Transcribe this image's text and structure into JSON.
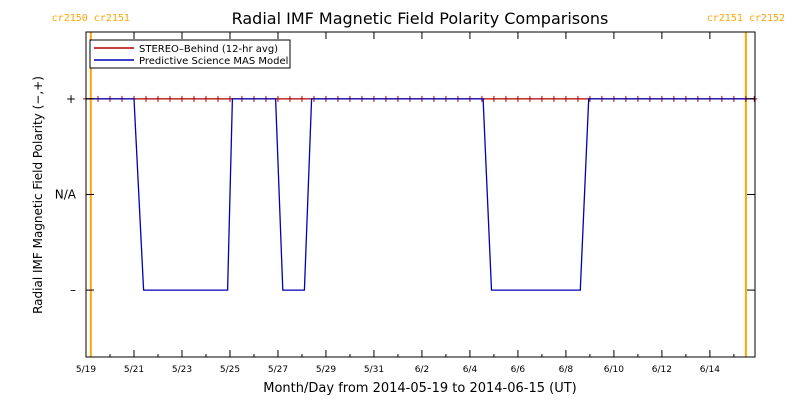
{
  "chart_data": {
    "type": "line",
    "title": "Radial IMF Magnetic Field Polarity Comparisons",
    "xlabel": "Month/Day from 2014-05-19 to 2014-06-15 (UT)",
    "ylabel": "Radial IMF Magnetic Field Polarity (−,+)",
    "xlim": [
      0,
      27.88
    ],
    "ylim": [
      -1.7,
      1.7
    ],
    "x_ticks": [
      {
        "x": 0,
        "label": "5/19"
      },
      {
        "x": 2,
        "label": "5/21"
      },
      {
        "x": 4,
        "label": "5/23"
      },
      {
        "x": 6,
        "label": "5/25"
      },
      {
        "x": 8,
        "label": "5/27"
      },
      {
        "x": 10,
        "label": "5/29"
      },
      {
        "x": 12,
        "label": "5/31"
      },
      {
        "x": 14,
        "label": "6/2"
      },
      {
        "x": 16,
        "label": "6/4"
      },
      {
        "x": 18,
        "label": "6/6"
      },
      {
        "x": 20,
        "label": "6/8"
      },
      {
        "x": 22,
        "label": "6/10"
      },
      {
        "x": 24,
        "label": "6/12"
      },
      {
        "x": 26,
        "label": "6/14"
      }
    ],
    "y_ticks": [
      {
        "y": 1,
        "label": "+"
      },
      {
        "y": 0,
        "label": "N/A"
      },
      {
        "y": -1,
        "label": "–"
      }
    ],
    "rotation_markers": [
      {
        "x": 0.2,
        "labels": [
          "cr2150",
          "cr2151"
        ],
        "color": "#ffa500"
      },
      {
        "x": 27.5,
        "labels": [
          "cr2151",
          "cr2152"
        ],
        "color": "#ffa500"
      }
    ],
    "legend_position": "top-left",
    "series": [
      {
        "name": "STEREO–Behind (12-hr avg)",
        "color": "#b00000",
        "marker": "plus",
        "x": [
          0,
          0.5,
          1,
          1.5,
          2,
          2.5,
          3,
          3.5,
          4,
          4.5,
          5,
          5.5,
          6,
          6.5,
          7,
          7.5,
          8,
          8.5,
          9,
          9.5,
          10,
          10.5,
          11,
          11.5,
          12,
          12.5,
          13,
          13.5,
          14,
          14.5,
          15,
          15.5,
          16,
          16.5,
          17,
          17.5,
          18,
          18.5,
          19,
          19.5,
          20,
          20.5,
          21,
          21.5,
          22,
          22.5,
          23,
          23.5,
          24,
          24.5,
          25,
          25.5,
          26,
          26.5,
          27,
          27.5,
          27.85
        ],
        "y": [
          1,
          1,
          1,
          1,
          1,
          1,
          1,
          1,
          1,
          1,
          1,
          1,
          1,
          1,
          1,
          1,
          1,
          1,
          1,
          1,
          1,
          1,
          1,
          1,
          1,
          1,
          1,
          1,
          1,
          1,
          1,
          1,
          1,
          1,
          1,
          1,
          1,
          1,
          1,
          1,
          1,
          1,
          1,
          1,
          1,
          1,
          1,
          1,
          1,
          1,
          1,
          1,
          1,
          1,
          1,
          1,
          1
        ]
      },
      {
        "name": "Predictive Science MAS Model",
        "color": "#0000b4",
        "marker": "none",
        "x": [
          0,
          2.0,
          2.4,
          5.9,
          6.1,
          7.9,
          8.2,
          9.1,
          9.4,
          16.55,
          16.9,
          20.6,
          20.95,
          27.85
        ],
        "y": [
          1,
          1,
          -1,
          -1,
          1,
          1,
          -1,
          -1,
          1,
          1,
          -1,
          -1,
          1,
          1
        ]
      }
    ]
  }
}
